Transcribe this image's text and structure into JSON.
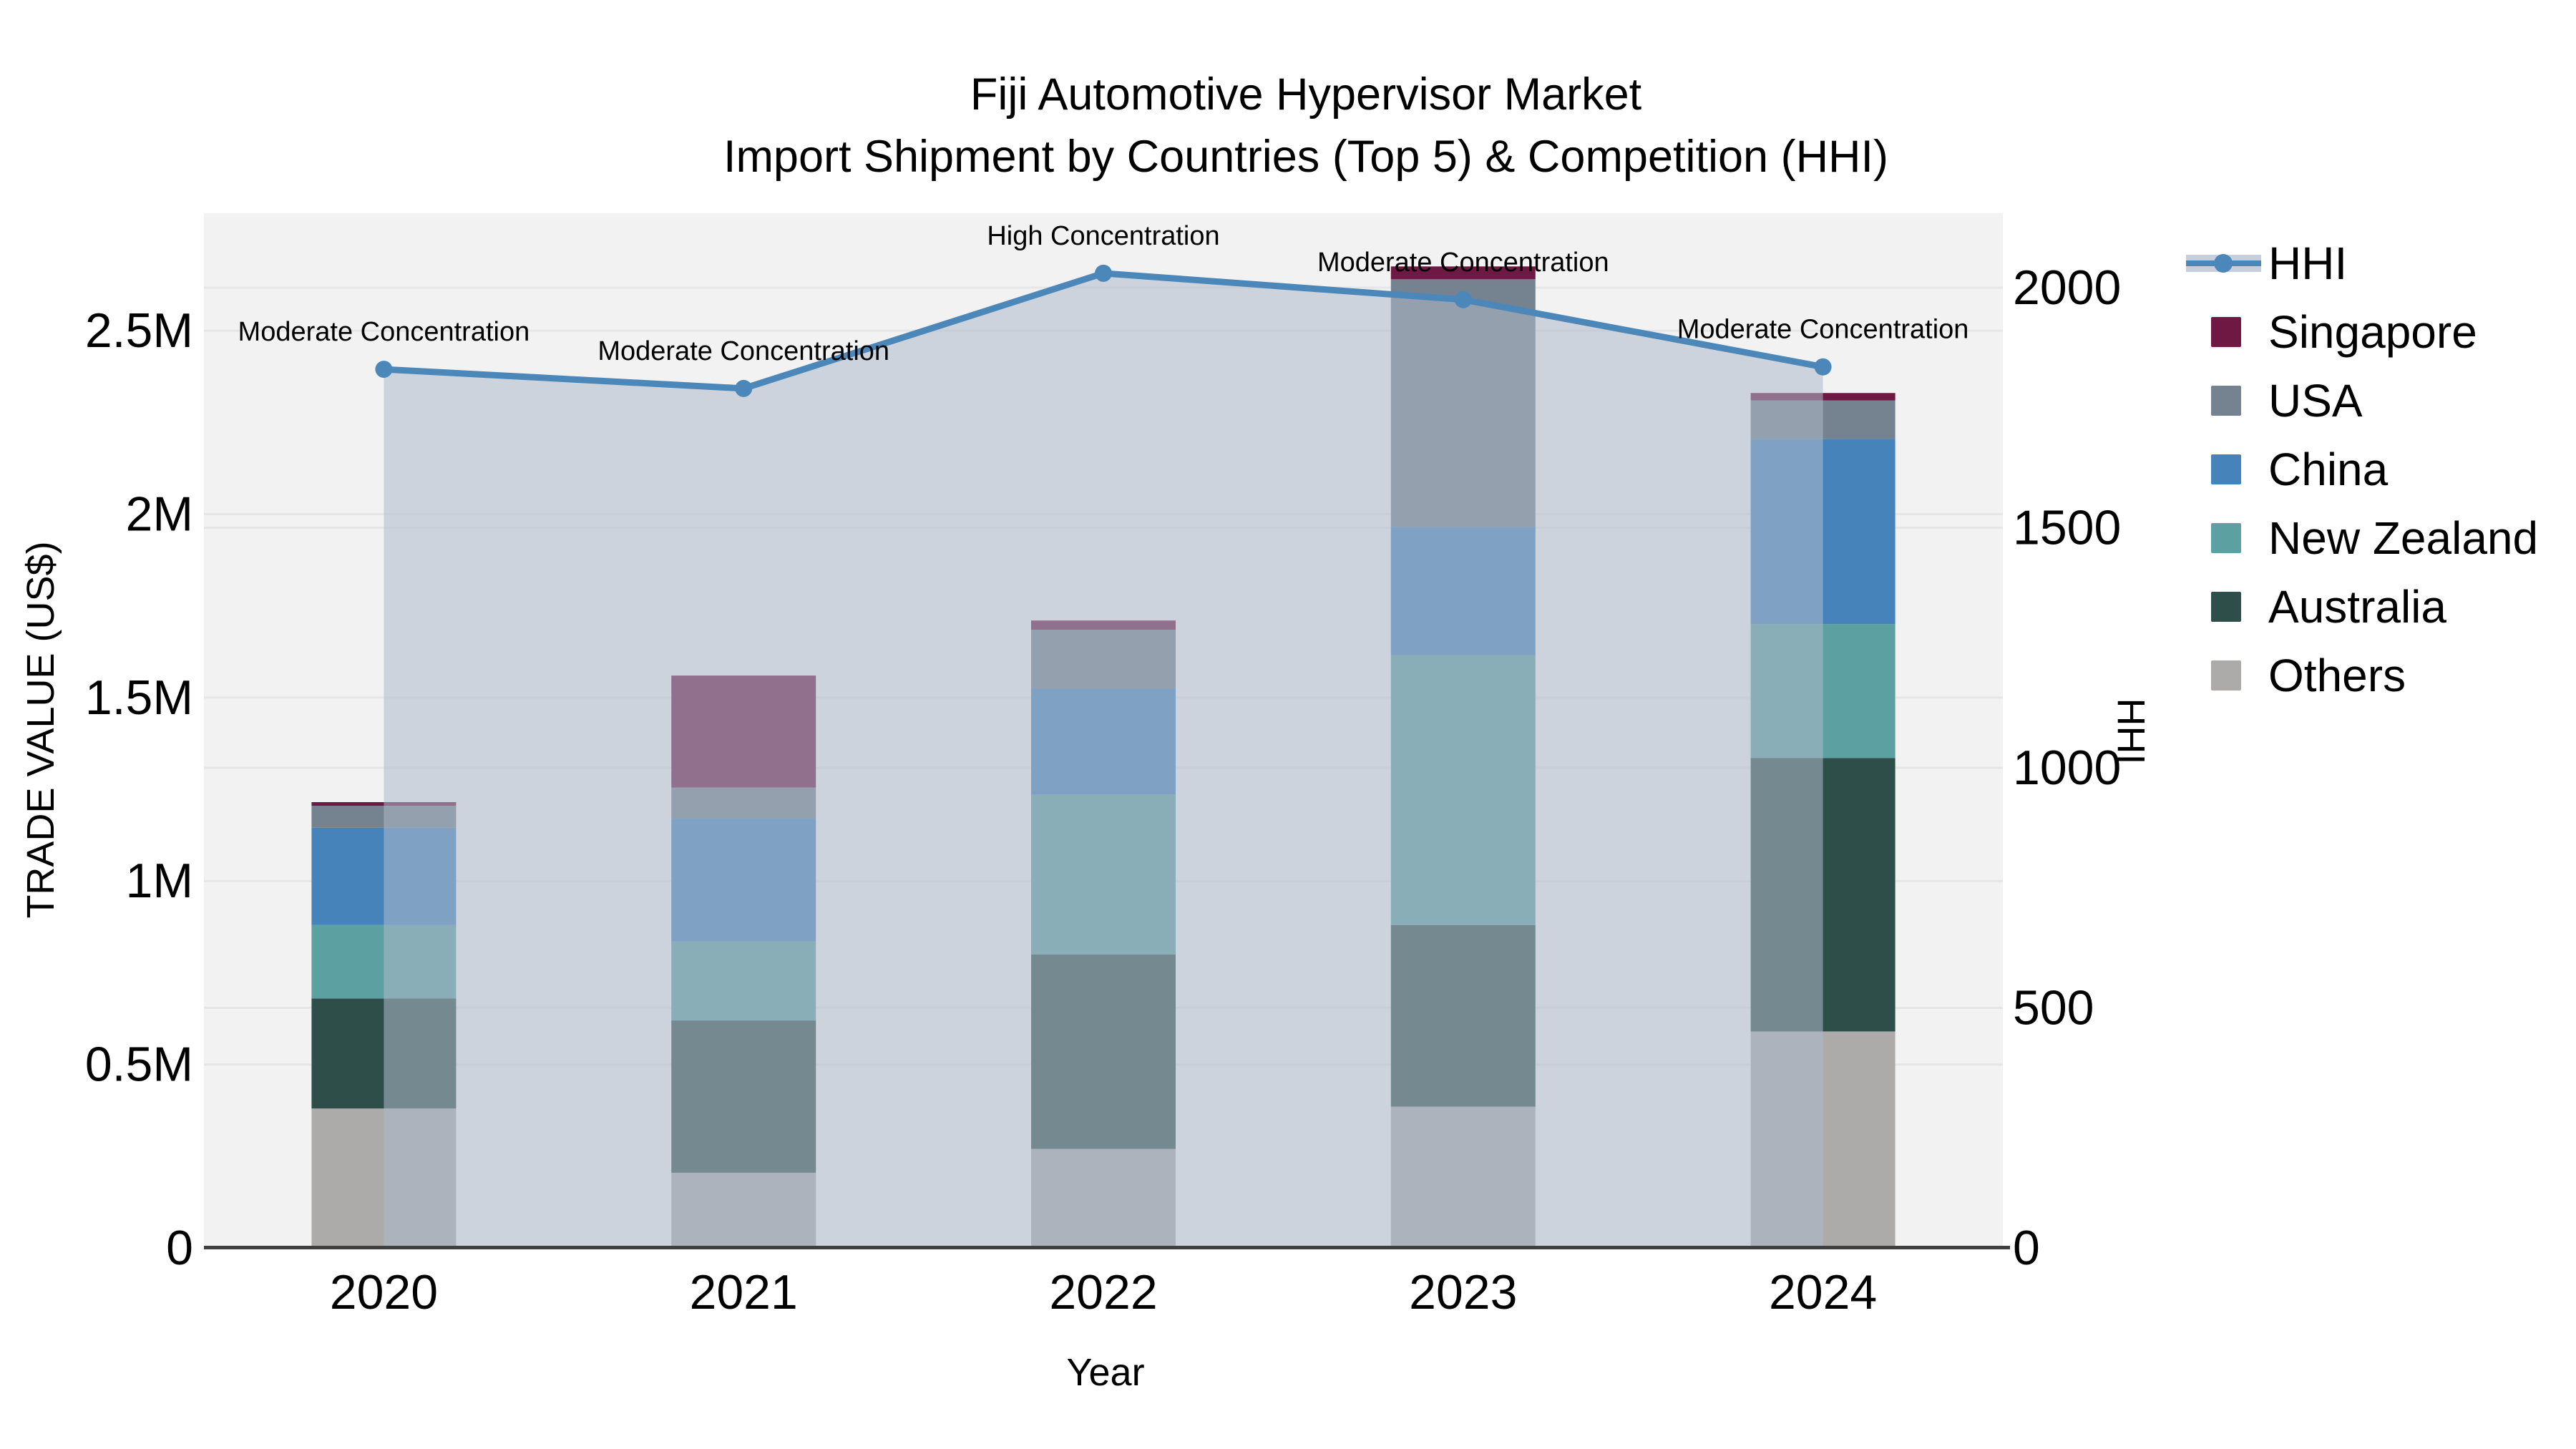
{
  "title": {
    "line1": "Fiji Automotive Hypervisor Market",
    "line2": "Import Shipment by Countries (Top 5) & Competition (HHI)"
  },
  "axes": {
    "left": {
      "title": "TRADE VALUE (US$)"
    },
    "right": {
      "title": "HHI"
    },
    "x": {
      "title": "Year"
    }
  },
  "legend": {
    "items": [
      {
        "label": "HHI",
        "type": "line",
        "color_key": "hhi_line"
      },
      {
        "label": "Singapore",
        "type": "swatch",
        "color_key": "singapore"
      },
      {
        "label": "USA",
        "type": "swatch",
        "color_key": "usa"
      },
      {
        "label": "China",
        "type": "swatch",
        "color_key": "china"
      },
      {
        "label": "New Zealand",
        "type": "swatch",
        "color_key": "new_zealand"
      },
      {
        "label": "Australia",
        "type": "swatch",
        "color_key": "australia"
      },
      {
        "label": "Others",
        "type": "swatch",
        "color_key": "others"
      }
    ]
  },
  "colors": {
    "singapore": "#6e1843",
    "usa": "#75828f",
    "china": "#4583ba",
    "new_zealand": "#5ca0a2",
    "australia": "#2e4f49",
    "others": "#acabaa",
    "hhi_line": "#4c87b9",
    "hhi_fill": "rgba(174,186,203,0.55)",
    "legend_band": "#c6cfda",
    "plot_bg": "#f2f2f2",
    "grid": "#e6e6e6",
    "axis_line": "#3f3f3f",
    "text": "#000000"
  },
  "chart_data": {
    "type": "bar",
    "subtype": "stacked-bars-with-line-overlay",
    "categories": [
      "2020",
      "2021",
      "2022",
      "2023",
      "2024"
    ],
    "stack_order_note": "series listed bottom-to-top of stack",
    "series": [
      {
        "name": "Others",
        "color_key": "others",
        "values": [
          380000,
          205000,
          270000,
          385000,
          590000
        ]
      },
      {
        "name": "Australia",
        "color_key": "australia",
        "values": [
          300000,
          415000,
          530000,
          495000,
          745000
        ]
      },
      {
        "name": "New Zealand",
        "color_key": "new_zealand",
        "values": [
          200000,
          215000,
          435000,
          735000,
          365000
        ]
      },
      {
        "name": "China",
        "color_key": "china",
        "values": [
          265000,
          335000,
          290000,
          350000,
          505000
        ]
      },
      {
        "name": "USA",
        "color_key": "usa",
        "values": [
          60000,
          85000,
          160000,
          675000,
          105000
        ]
      },
      {
        "name": "Singapore",
        "color_key": "singapore",
        "values": [
          10000,
          305000,
          25000,
          35000,
          20000
        ]
      }
    ],
    "bar_totals": [
      1215000,
      1560000,
      1710000,
      2675000,
      2330000
    ],
    "line_series": {
      "name": "HHI",
      "axis": "right",
      "area_fill": true,
      "values": [
        1830,
        1790,
        2030,
        1975,
        1835
      ],
      "annotations": [
        "Moderate Concentration",
        "Moderate Concentration",
        "High Concentration",
        "Moderate Concentration",
        "Moderate Concentration"
      ]
    },
    "left_axis": {
      "ticks": [
        {
          "label": "0",
          "value": 0
        },
        {
          "label": "0.5M",
          "value": 500000
        },
        {
          "label": "1M",
          "value": 1000000
        },
        {
          "label": "1.5M",
          "value": 1500000
        },
        {
          "label": "2M",
          "value": 2000000
        },
        {
          "label": "2.5M",
          "value": 2500000
        }
      ],
      "range": [
        0,
        2820000
      ],
      "ylabel": "TRADE VALUE (US$)"
    },
    "right_axis": {
      "ticks": [
        {
          "label": "0",
          "value": 0
        },
        {
          "label": "500",
          "value": 500
        },
        {
          "label": "1000",
          "value": 1000
        },
        {
          "label": "1500",
          "value": 1500
        },
        {
          "label": "2000",
          "value": 2000
        }
      ],
      "range": [
        0,
        2155
      ],
      "ylabel": "HHI"
    },
    "xlabel": "Year",
    "grid": true,
    "legend_position": "right"
  }
}
